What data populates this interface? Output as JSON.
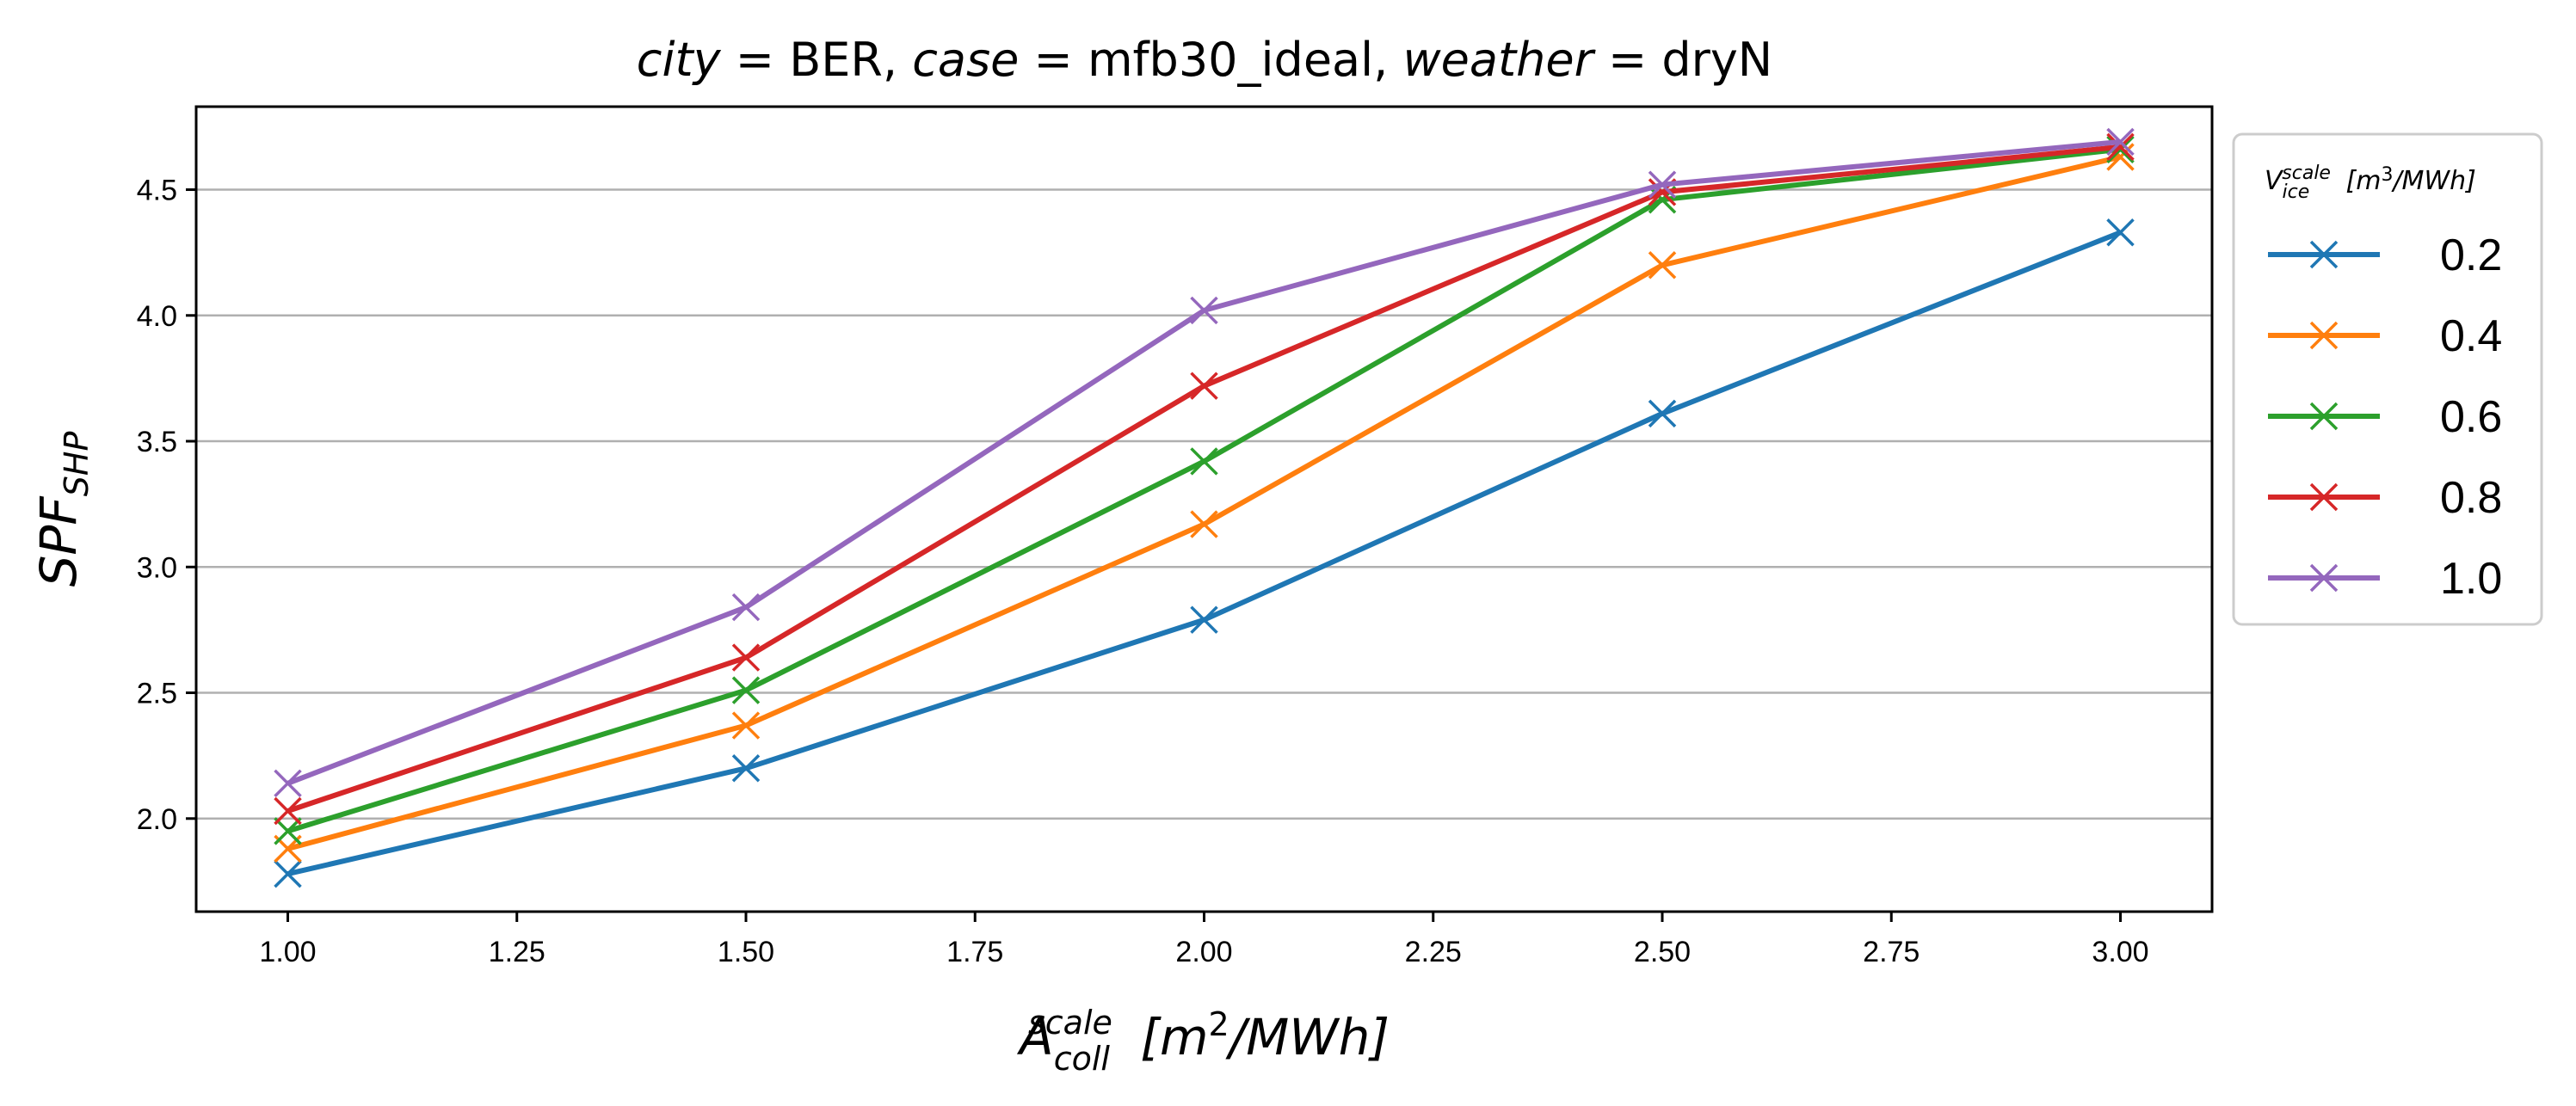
{
  "chart_data": {
    "type": "line",
    "title": {
      "city_key": "city",
      "city_value": "BER",
      "case_key": "case",
      "case_value": "mfb30_ideal",
      "weather_key": "weather",
      "weather_value": "dryN"
    },
    "xlabel": {
      "base": "A",
      "sub": "coll",
      "sup": "scale",
      "unit_pre": "[m",
      "unit_sup": "2",
      "unit_post": "/MWh]"
    },
    "ylabel": {
      "base": "SPF",
      "sub": "SHP"
    },
    "legend_title": {
      "base": "V",
      "sub": "ice",
      "sup": "scale",
      "unit_pre": "[m",
      "unit_sup": "3",
      "unit_post": "/MWh]"
    },
    "legend_position": "right outside, top",
    "xlim": [
      0.9,
      3.1
    ],
    "ylim": [
      1.63,
      4.83
    ],
    "x_ticks": [
      1.0,
      1.25,
      1.5,
      1.75,
      2.0,
      2.25,
      2.5,
      2.75,
      3.0
    ],
    "x_tick_labels": [
      "1.00",
      "1.25",
      "1.50",
      "1.75",
      "2.00",
      "2.25",
      "2.50",
      "2.75",
      "3.00"
    ],
    "y_ticks": [
      2.0,
      2.5,
      3.0,
      3.5,
      4.0,
      4.5
    ],
    "y_tick_labels": [
      "2.0",
      "2.5",
      "3.0",
      "3.5",
      "4.0",
      "4.5"
    ],
    "grid": "horizontal",
    "marker": "x",
    "x": [
      1.0,
      1.5,
      2.0,
      2.5,
      3.0
    ],
    "series": [
      {
        "name": "0.2",
        "color": "#1f77b4",
        "values": [
          1.78,
          2.2,
          2.79,
          3.61,
          4.33
        ]
      },
      {
        "name": "0.4",
        "color": "#ff7f0e",
        "values": [
          1.88,
          2.37,
          3.17,
          4.2,
          4.63
        ]
      },
      {
        "name": "0.6",
        "color": "#2ca02c",
        "values": [
          1.95,
          2.51,
          3.42,
          4.46,
          4.66
        ]
      },
      {
        "name": "0.8",
        "color": "#d62728",
        "values": [
          2.03,
          2.64,
          3.72,
          4.49,
          4.67
        ]
      },
      {
        "name": "1.0",
        "color": "#9467bd",
        "values": [
          2.14,
          2.84,
          4.02,
          4.52,
          4.69
        ]
      }
    ]
  }
}
